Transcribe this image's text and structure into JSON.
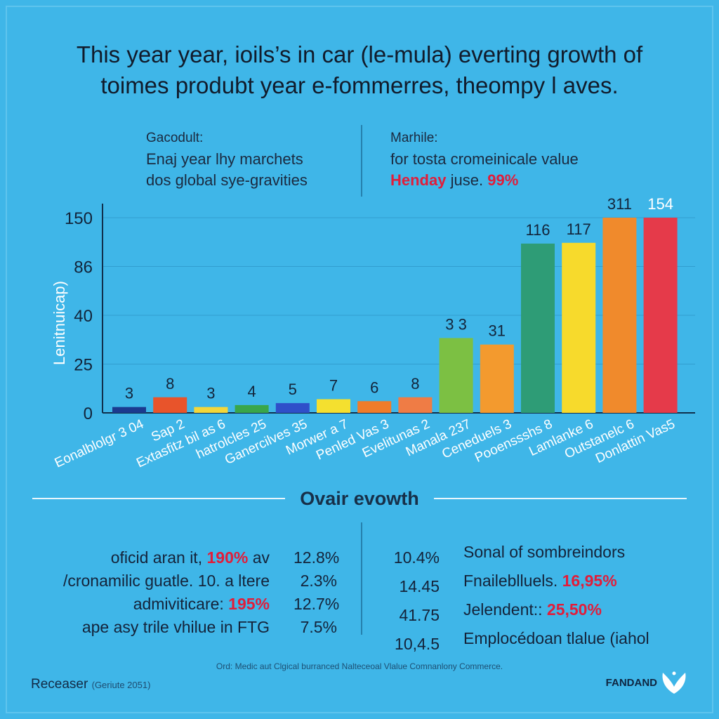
{
  "title": {
    "line1": "This year year, ioils’s in car (le-mula) everting growth of",
    "line2": "toimes produbt year e-fommerres, theompy l aves."
  },
  "subtitle_left": {
    "label": "Gacodult:",
    "line1": "Enaj year lhy marchets",
    "line2": "dos global sye-gravities"
  },
  "subtitle_right": {
    "label": "Marhile:",
    "line1": "for tosta cromeinicale value",
    "highlight": "Henday",
    "tail": "juse.",
    "percent": "99%"
  },
  "chart_data": {
    "type": "bar",
    "ylabel": "Lenitnuicap)",
    "y_ticks": [
      "0",
      "25",
      "40",
      "86",
      "150"
    ],
    "categories": [
      "Eonalblolgr 3 04",
      "Sap 2",
      "Extasfitz bil as 6",
      "hatrolcles 25",
      "Ganercilves 35",
      "Morwer a 7",
      "Penled Vas 3",
      "Evelitunas 2",
      "Manala 237",
      "Ceneduels 3",
      "Pooenssshs 8",
      "Lamlanke 6",
      "Outstanelc 6",
      "Donlattin Vas5"
    ],
    "values": [
      3,
      8,
      3,
      4,
      5,
      7,
      6,
      8,
      33,
      31,
      116,
      117,
      311,
      154
    ],
    "value_labels": [
      "3",
      "8",
      "3",
      "4",
      "5",
      "7",
      "6",
      "8",
      "3 3",
      "31",
      "116",
      "117",
      "311",
      "154"
    ],
    "colors": [
      "#1b3a8f",
      "#e8542b",
      "#f3d73a",
      "#39a64a",
      "#2f4fc9",
      "#f4e02f",
      "#ef7c2a",
      "#ef7c45",
      "#7cc043",
      "#f39a2e",
      "#2e9c76",
      "#f7da2c",
      "#f08a2c",
      "#e53a4a"
    ]
  },
  "overall": {
    "title": "Ovair evowth"
  },
  "stats_left": [
    {
      "pre": "oficid aran it, ",
      "hl": "190%",
      "post": " av",
      "num": "12.8%"
    },
    {
      "pre": "/cronamilic guatle. 10. a ltere",
      "hl": "",
      "post": "",
      "num": "2.3%"
    },
    {
      "pre": "admiviticare: ",
      "hl": "195%",
      "post": "",
      "num": "12.7%"
    },
    {
      "pre": "ape asy trile vhilue in FTG",
      "hl": "",
      "post": "",
      "num": "7.5%"
    }
  ],
  "stats_right": [
    {
      "num": "10.4%",
      "pre": "Sonal of sombreindors",
      "hl": ""
    },
    {
      "num": "14.45",
      "pre": "Fnaileblluels. ",
      "hl": "16,95%"
    },
    {
      "num": "41.75",
      "pre": "Jelendent:: ",
      "hl": "25,50%"
    },
    {
      "num": "10,4.5",
      "pre": "Emplocédoan tlalue (iahol",
      "hl": ""
    }
  ],
  "footnote": "Ord: Medic aut Clgical burranced Nalteceoal Vlalue Comnanlony Commerce.",
  "source": {
    "label": "Receaser",
    "date": "(Geriute 2051)"
  },
  "logo": {
    "text": "FANDAND",
    "icon": "wing-tulip-icon",
    "color": "#ffffff"
  }
}
